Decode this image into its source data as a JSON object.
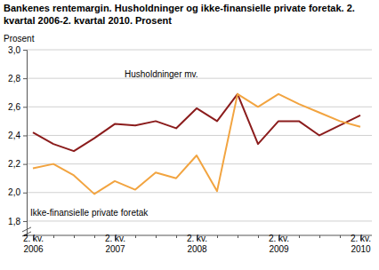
{
  "chart_data": {
    "type": "line",
    "title": "Bankenes rentemargin. Husholdninger og ikke-finansielle private foretak. 2. kvartal 2006-2. kvartal 2010. Prosent",
    "y_label": "Prosent",
    "categories": [
      "2. kv. 2006",
      null,
      null,
      null,
      "2. kv. 2007",
      null,
      null,
      null,
      "2. kv. 2008",
      null,
      null,
      null,
      "2. kv. 2009",
      null,
      null,
      null,
      "2. kv. 2010"
    ],
    "series": [
      {
        "name": "Husholdninger mv.",
        "color": "#8b1c1c",
        "values": [
          2.42,
          2.34,
          2.29,
          2.38,
          2.48,
          2.47,
          2.5,
          2.45,
          2.59,
          2.5,
          2.69,
          2.34,
          2.5,
          2.5,
          2.4,
          2.47,
          2.54
        ]
      },
      {
        "name": "Ikke-finansielle private foretak",
        "color": "#f2a440",
        "values": [
          2.17,
          2.2,
          2.12,
          1.99,
          2.08,
          2.02,
          2.14,
          2.1,
          2.26,
          2.01,
          2.69,
          2.6,
          2.69,
          2.62,
          2.56,
          2.5,
          2.46
        ]
      }
    ],
    "ylim": [
      1.7,
      3.0
    ],
    "yticks": [
      {
        "value": 1.8,
        "label": "1,8"
      },
      {
        "value": 2.0,
        "label": "2,0"
      },
      {
        "value": 2.2,
        "label": "2,2"
      },
      {
        "value": 2.4,
        "label": "2,4"
      },
      {
        "value": 2.6,
        "label": "2,6"
      },
      {
        "value": 2.8,
        "label": "2,8"
      },
      {
        "value": 3.0,
        "label": "3,0"
      }
    ],
    "grid": true
  }
}
